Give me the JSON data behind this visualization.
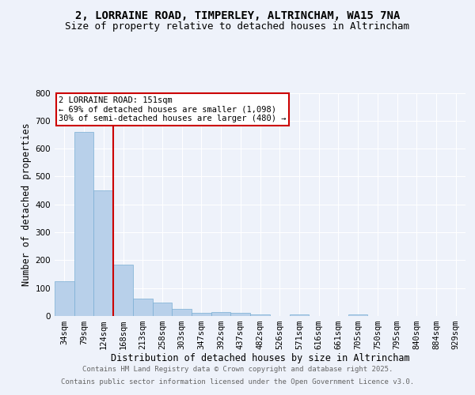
{
  "title_line1": "2, LORRAINE ROAD, TIMPERLEY, ALTRINCHAM, WA15 7NA",
  "title_line2": "Size of property relative to detached houses in Altrincham",
  "categories": [
    "34sqm",
    "79sqm",
    "124sqm",
    "168sqm",
    "213sqm",
    "258sqm",
    "303sqm",
    "347sqm",
    "392sqm",
    "437sqm",
    "482sqm",
    "526sqm",
    "571sqm",
    "616sqm",
    "661sqm",
    "705sqm",
    "750sqm",
    "795sqm",
    "840sqm",
    "884sqm",
    "929sqm"
  ],
  "values": [
    125,
    660,
    450,
    185,
    62,
    48,
    25,
    10,
    13,
    10,
    5,
    0,
    5,
    0,
    0,
    5,
    0,
    0,
    0,
    0,
    0
  ],
  "bar_color": "#b8d0ea",
  "bar_edge_color": "#7aafd4",
  "red_line_index": 2.5,
  "xlabel": "Distribution of detached houses by size in Altrincham",
  "ylabel": "Number of detached properties",
  "ylim": [
    0,
    800
  ],
  "yticks": [
    0,
    100,
    200,
    300,
    400,
    500,
    600,
    700,
    800
  ],
  "annotation_text": "2 LORRAINE ROAD: 151sqm\n← 69% of detached houses are smaller (1,098)\n30% of semi-detached houses are larger (480) →",
  "annotation_box_color": "#ffffff",
  "annotation_border_color": "#cc0000",
  "footer_line1": "Contains HM Land Registry data © Crown copyright and database right 2025.",
  "footer_line2": "Contains public sector information licensed under the Open Government Licence v3.0.",
  "background_color": "#eef2fa",
  "grid_color": "#ffffff",
  "title_fontsize": 10,
  "subtitle_fontsize": 9,
  "axis_label_fontsize": 8.5,
  "tick_fontsize": 7.5,
  "annotation_fontsize": 7.5,
  "footer_fontsize": 6.5
}
